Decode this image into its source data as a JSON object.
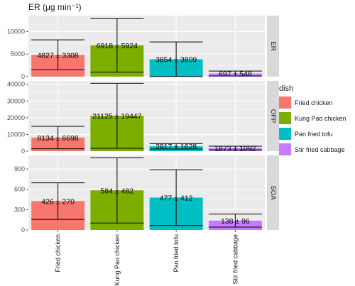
{
  "chart_data": {
    "type": "bar",
    "title": "",
    "ylabel": "ER (μg min⁻¹)",
    "xlabel": "",
    "categories": [
      "Fried chicken",
      "Kung Pao chicken",
      "Pan fried tofu",
      "Stir fried cabbage"
    ],
    "colors": [
      "#F8766D",
      "#7CAE00",
      "#00BFC4",
      "#C77CFF"
    ],
    "grid": true,
    "legend": {
      "title": "dish",
      "position": "right",
      "items": [
        "Fried chicken",
        "Kung Pao chicken",
        "Pan fried tofu",
        "Stir fried cabbage"
      ]
    },
    "panels": [
      {
        "name": "ER",
        "values": [
          4827,
          6918,
          3854,
          697
        ],
        "errors": [
          3308,
          5924,
          3809,
          548
        ],
        "labels": [
          "4827 ± 3308",
          "6918 ± 5924",
          "3854 ± 3809",
          "697 ± 548"
        ],
        "ylim": [
          0,
          13500
        ],
        "yticks": [
          0,
          5000,
          10000
        ],
        "yticklabels": [
          "0",
          "5000",
          "10000"
        ]
      },
      {
        "name": "OFP",
        "values": [
          8134,
          21125,
          2917,
          1873
        ],
        "errors": [
          6698,
          19447,
          1628,
          1092
        ],
        "labels": [
          "8134 ± 6698",
          "21125 ± 19447",
          "2917 ± 1628",
          "1873 ± 1092"
        ],
        "ylim": [
          0,
          42000
        ],
        "yticks": [
          0,
          10000,
          20000,
          30000,
          40000
        ],
        "yticklabels": [
          "0",
          "10000",
          "20000",
          "30000",
          "40000"
        ]
      },
      {
        "name": "SOA",
        "values": [
          426,
          584,
          477,
          138
        ],
        "errors": [
          270,
          482,
          412,
          96
        ],
        "labels": [
          "426 ± 270",
          "584 ± 482",
          "477 ± 412",
          "138 ± 96"
        ],
        "ylim": [
          0,
          1100
        ],
        "yticks": [
          0,
          300,
          600,
          900
        ],
        "yticklabels": [
          "0",
          "300",
          "600",
          "900"
        ]
      }
    ]
  }
}
